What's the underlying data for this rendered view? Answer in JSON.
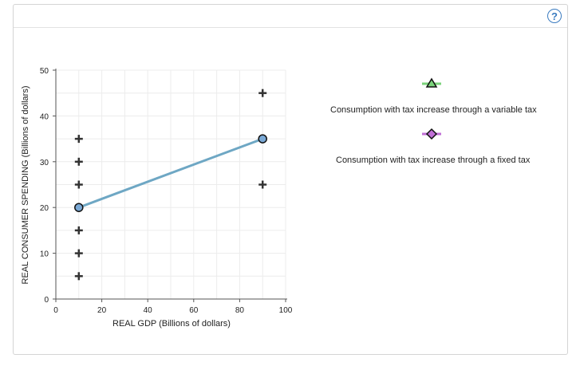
{
  "toolbar": {
    "help_label": "?"
  },
  "colors": {
    "line": "#6ea7c4",
    "point_fill": "#7aa9d6",
    "legend_variable_line": "#7bd37b",
    "legend_variable_marker": "#2e7d32",
    "legend_fixed_line": "#c06fd6",
    "legend_fixed_marker": "#7b1fa2",
    "cross": "#333333"
  },
  "legend": {
    "variable": {
      "label": "Consumption with tax increase through a variable tax",
      "icon": "triangle-marker-icon"
    },
    "fixed": {
      "label": "Consumption with tax increase through a fixed tax",
      "icon": "diamond-marker-icon"
    }
  },
  "chart_data": {
    "type": "line",
    "title": "",
    "xlabel": "REAL GDP (Billions of dollars)",
    "ylabel": "REAL CONSUMER SPENDING (Billions of dollars)",
    "xlim": [
      0,
      100
    ],
    "ylim": [
      0,
      50
    ],
    "xticks": [
      0,
      20,
      40,
      60,
      80,
      100
    ],
    "yticks": [
      0,
      10,
      20,
      30,
      40,
      50
    ],
    "grid": true,
    "series": [
      {
        "points": [
          [
            10,
            20
          ],
          [
            90,
            35
          ]
        ]
      }
    ],
    "crosses": [
      [
        10,
        35
      ],
      [
        10,
        30
      ],
      [
        10,
        25
      ],
      [
        10,
        15
      ],
      [
        10,
        10
      ],
      [
        10,
        5
      ],
      [
        90,
        45
      ],
      [
        90,
        25
      ]
    ]
  }
}
